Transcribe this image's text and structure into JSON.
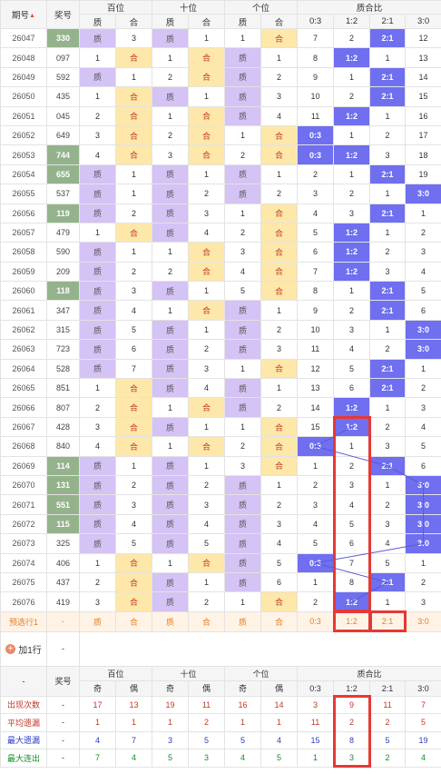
{
  "headers": {
    "issue": "期号",
    "prize": "奖号",
    "hundreds": "百位",
    "tens": "十位",
    "units": "个位",
    "ratio": "质合比",
    "zhi": "质",
    "he": "合",
    "ratio_cols": [
      "0:3",
      "1:2",
      "2:1",
      "3:0"
    ]
  },
  "rows": [
    {
      "issue": "26047",
      "num": "330",
      "hl": true,
      "h": [
        "质",
        "3"
      ],
      "t": [
        "质",
        "1"
      ],
      "u": [
        "1",
        "合"
      ],
      "r": [
        "7",
        "2",
        "2:1",
        "12"
      ],
      "g": false
    },
    {
      "issue": "26048",
      "num": "097",
      "hl": false,
      "h": [
        "1",
        "合"
      ],
      "t": [
        "1",
        "合"
      ],
      "u": [
        "质",
        "1"
      ],
      "r": [
        "8",
        "1:2",
        "1",
        "13"
      ],
      "g": false
    },
    {
      "issue": "26049",
      "num": "592",
      "hl": false,
      "h": [
        "质",
        "1"
      ],
      "t": [
        "2",
        "合"
      ],
      "u": [
        "质",
        "2"
      ],
      "r": [
        "9",
        "1",
        "2:1",
        "14"
      ],
      "g": false
    },
    {
      "issue": "26050",
      "num": "435",
      "hl": false,
      "h": [
        "1",
        "合"
      ],
      "t": [
        "质",
        "1"
      ],
      "u": [
        "质",
        "3"
      ],
      "r": [
        "10",
        "2",
        "2:1",
        "15"
      ],
      "g": false
    },
    {
      "issue": "26051",
      "num": "045",
      "hl": false,
      "h": [
        "2",
        "合"
      ],
      "t": [
        "1",
        "合"
      ],
      "u": [
        "质",
        "4"
      ],
      "r": [
        "11",
        "1:2",
        "1",
        "16"
      ],
      "g": false
    },
    {
      "issue": "26052",
      "num": "649",
      "hl": false,
      "h": [
        "3",
        "合"
      ],
      "t": [
        "2",
        "合"
      ],
      "u": [
        "1",
        "合"
      ],
      "r": [
        "0:3",
        "1",
        "2",
        "17"
      ],
      "g": true
    },
    {
      "issue": "26053",
      "num": "744",
      "hl": true,
      "h": [
        "4",
        "合"
      ],
      "t": [
        "3",
        "合"
      ],
      "u": [
        "2",
        "合"
      ],
      "r": [
        "0:3",
        "1:2",
        "3",
        "18"
      ],
      "g": false
    },
    {
      "issue": "26054",
      "num": "655",
      "hl": true,
      "h": [
        "质",
        "1"
      ],
      "t": [
        "质",
        "1"
      ],
      "u": [
        "质",
        "1"
      ],
      "r": [
        "2",
        "1",
        "2:1",
        "19"
      ],
      "g": false
    },
    {
      "issue": "26055",
      "num": "537",
      "hl": false,
      "h": [
        "质",
        "1"
      ],
      "t": [
        "质",
        "2"
      ],
      "u": [
        "质",
        "2"
      ],
      "r": [
        "3",
        "2",
        "1",
        "3:0"
      ],
      "g": false
    },
    {
      "issue": "26056",
      "num": "119",
      "hl": true,
      "h": [
        "质",
        "2"
      ],
      "t": [
        "质",
        "3"
      ],
      "u": [
        "1",
        "合"
      ],
      "r": [
        "4",
        "3",
        "2:1",
        "1"
      ],
      "g": false
    },
    {
      "issue": "26057",
      "num": "479",
      "hl": false,
      "h": [
        "1",
        "合"
      ],
      "t": [
        "质",
        "4"
      ],
      "u": [
        "2",
        "合"
      ],
      "r": [
        "5",
        "1:2",
        "1",
        "2"
      ],
      "g": true
    },
    {
      "issue": "26058",
      "num": "590",
      "hl": false,
      "h": [
        "质",
        "1"
      ],
      "t": [
        "1",
        "合"
      ],
      "u": [
        "3",
        "合"
      ],
      "r": [
        "6",
        "1:2",
        "2",
        "3"
      ],
      "g": false
    },
    {
      "issue": "26059",
      "num": "209",
      "hl": false,
      "h": [
        "质",
        "2"
      ],
      "t": [
        "2",
        "合"
      ],
      "u": [
        "4",
        "合"
      ],
      "r": [
        "7",
        "1:2",
        "3",
        "4"
      ],
      "g": false
    },
    {
      "issue": "26060",
      "num": "118",
      "hl": true,
      "h": [
        "质",
        "3"
      ],
      "t": [
        "质",
        "1"
      ],
      "u": [
        "5",
        "合"
      ],
      "r": [
        "8",
        "1",
        "2:1",
        "5"
      ],
      "g": false
    },
    {
      "issue": "26061",
      "num": "347",
      "hl": false,
      "h": [
        "质",
        "4"
      ],
      "t": [
        "1",
        "合"
      ],
      "u": [
        "质",
        "1"
      ],
      "r": [
        "9",
        "2",
        "2:1",
        "6"
      ],
      "g": false
    },
    {
      "issue": "26062",
      "num": "315",
      "hl": false,
      "h": [
        "质",
        "5"
      ],
      "t": [
        "质",
        "1"
      ],
      "u": [
        "质",
        "2"
      ],
      "r": [
        "10",
        "3",
        "1",
        "3:0"
      ],
      "g": true
    },
    {
      "issue": "26063",
      "num": "723",
      "hl": false,
      "h": [
        "质",
        "6"
      ],
      "t": [
        "质",
        "2"
      ],
      "u": [
        "质",
        "3"
      ],
      "r": [
        "11",
        "4",
        "2",
        "3:0"
      ],
      "g": false
    },
    {
      "issue": "26064",
      "num": "528",
      "hl": false,
      "h": [
        "质",
        "7"
      ],
      "t": [
        "质",
        "3"
      ],
      "u": [
        "1",
        "合"
      ],
      "r": [
        "12",
        "5",
        "2:1",
        "1"
      ],
      "g": false
    },
    {
      "issue": "26065",
      "num": "851",
      "hl": false,
      "h": [
        "1",
        "合"
      ],
      "t": [
        "质",
        "4"
      ],
      "u": [
        "质",
        "1"
      ],
      "r": [
        "13",
        "6",
        "2:1",
        "2"
      ],
      "g": false
    },
    {
      "issue": "26066",
      "num": "807",
      "h": [
        "2",
        "合"
      ],
      "hl": false,
      "t": [
        "1",
        "合"
      ],
      "u": [
        "质",
        "2"
      ],
      "r": [
        "14",
        "1:2",
        "1",
        "3"
      ],
      "g": false
    },
    {
      "issue": "26067",
      "num": "428",
      "hl": false,
      "h": [
        "3",
        "合"
      ],
      "t": [
        "质",
        "1"
      ],
      "u": [
        "1",
        "合"
      ],
      "r": [
        "15",
        "1:2",
        "2",
        "4"
      ],
      "g": true
    },
    {
      "issue": "26068",
      "num": "840",
      "hl": false,
      "h": [
        "4",
        "合"
      ],
      "t": [
        "1",
        "合"
      ],
      "u": [
        "2",
        "合"
      ],
      "r": [
        "0:3",
        "1",
        "3",
        "5"
      ],
      "g": false
    },
    {
      "issue": "26069",
      "num": "114",
      "hl": true,
      "h": [
        "质",
        "1"
      ],
      "t": [
        "质",
        "1"
      ],
      "u": [
        "3",
        "合"
      ],
      "r": [
        "1",
        "2",
        "2:1",
        "6"
      ],
      "g": false
    },
    {
      "issue": "26070",
      "num": "131",
      "hl": true,
      "h": [
        "质",
        "2"
      ],
      "t": [
        "质",
        "2"
      ],
      "u": [
        "质",
        "1"
      ],
      "r": [
        "2",
        "3",
        "1",
        "3:0"
      ],
      "g": false
    },
    {
      "issue": "26071",
      "num": "551",
      "hl": true,
      "h": [
        "质",
        "3"
      ],
      "t": [
        "质",
        "3"
      ],
      "u": [
        "质",
        "2"
      ],
      "r": [
        "3",
        "4",
        "2",
        "3:0"
      ],
      "g": false
    },
    {
      "issue": "26072",
      "num": "115",
      "hl": true,
      "h": [
        "质",
        "4"
      ],
      "t": [
        "质",
        "4"
      ],
      "u": [
        "质",
        "3"
      ],
      "r": [
        "4",
        "5",
        "3",
        "3:0"
      ],
      "g": true
    },
    {
      "issue": "26073",
      "num": "325",
      "hl": false,
      "h": [
        "质",
        "5"
      ],
      "t": [
        "质",
        "5"
      ],
      "u": [
        "质",
        "4"
      ],
      "r": [
        "5",
        "6",
        "4",
        "3:0"
      ],
      "g": false
    },
    {
      "issue": "26074",
      "num": "406",
      "hl": false,
      "h": [
        "1",
        "合"
      ],
      "t": [
        "1",
        "合"
      ],
      "u": [
        "质",
        "5"
      ],
      "r": [
        "0:3",
        "7",
        "5",
        "1"
      ],
      "g": false
    },
    {
      "issue": "26075",
      "num": "437",
      "hl": false,
      "h": [
        "2",
        "合"
      ],
      "t": [
        "质",
        "1"
      ],
      "u": [
        "质",
        "6"
      ],
      "r": [
        "1",
        "8",
        "2:1",
        "2"
      ],
      "g": false
    },
    {
      "issue": "26076",
      "num": "419",
      "hl": false,
      "h": [
        "3",
        "合"
      ],
      "t": [
        "质",
        "2"
      ],
      "u": [
        "1",
        "合"
      ],
      "r": [
        "2",
        "1:2",
        "1",
        "3"
      ],
      "g": false
    }
  ],
  "prediction": {
    "label": "预选行1",
    "num": "-",
    "cells": [
      "质",
      "合",
      "质",
      "合",
      "质",
      "合",
      "0:3",
      "1:2",
      "2:1",
      "3:0"
    ]
  },
  "add_row": {
    "label": "加1行",
    "num": "-"
  },
  "summary_header": {
    "first": "-",
    "prize": "奖号",
    "groups": [
      "百位",
      "十位",
      "个位",
      "质合比"
    ],
    "sub": [
      "奇",
      "偶",
      "奇",
      "偶",
      "奇",
      "偶",
      "0:3",
      "1:2",
      "2:1",
      "3:0"
    ]
  },
  "stats": [
    {
      "label": "出现次数",
      "color": "red",
      "num": "-",
      "vals": [
        "17",
        "13",
        "19",
        "11",
        "16",
        "14",
        "3",
        "9",
        "11",
        "7"
      ]
    },
    {
      "label": "平均遗漏",
      "color": "red",
      "num": "-",
      "vals": [
        "1",
        "1",
        "1",
        "2",
        "1",
        "1",
        "11",
        "2",
        "2",
        "5"
      ]
    },
    {
      "label": "最大遗漏",
      "color": "blue",
      "num": "-",
      "vals": [
        "4",
        "7",
        "3",
        "5",
        "5",
        "4",
        "15",
        "8",
        "5",
        "19"
      ]
    },
    {
      "label": "最大连出",
      "color": "green",
      "num": "-",
      "vals": [
        "7",
        "4",
        "5",
        "3",
        "4",
        "5",
        "1",
        "3",
        "2",
        "4"
      ]
    }
  ],
  "colors": {
    "zhi": "#d4c3f4",
    "he": "#fde8a9",
    "ratio_on": "#6f6ff0",
    "num_hl": "#94b38c",
    "frame": "#e53935"
  }
}
